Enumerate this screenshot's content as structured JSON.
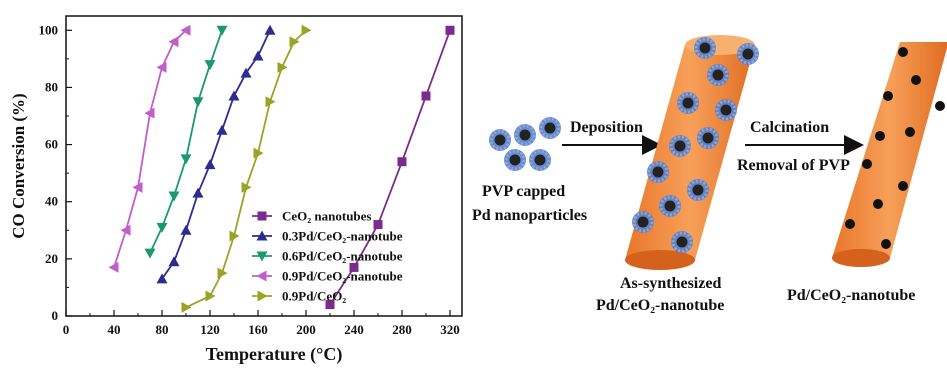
{
  "chart_data": {
    "type": "line",
    "xlabel": "Temperature (°C)",
    "ylabel": "CO Conversion (%)",
    "xlim": [
      0,
      330
    ],
    "ylim": [
      0,
      105
    ],
    "xticks": [
      "0",
      "40",
      "80",
      "120",
      "160",
      "200",
      "240",
      "280",
      "320"
    ],
    "yticks": [
      "0",
      "20",
      "40",
      "60",
      "80",
      "100"
    ],
    "legend_position": "bottom-right",
    "series": [
      {
        "name": "CeO₂ nanotubes",
        "color": "#7b2a8e",
        "marker": "square",
        "x": [
          220,
          240,
          260,
          280,
          300,
          320
        ],
        "y": [
          4,
          17,
          32,
          54,
          77,
          100
        ]
      },
      {
        "name": "0.3Pd/CeO₂-nanotube",
        "color": "#2b2c8f",
        "marker": "triangle-up",
        "x": [
          80,
          90,
          100,
          110,
          120,
          130,
          140,
          150,
          160,
          170
        ],
        "y": [
          13,
          19,
          30,
          43,
          53,
          65,
          77,
          85,
          91,
          100
        ]
      },
      {
        "name": "0.6Pd/CeO₂-nanotube",
        "color": "#1a9a6c",
        "marker": "triangle-down",
        "x": [
          70,
          80,
          90,
          100,
          110,
          120,
          130
        ],
        "y": [
          22,
          31,
          42,
          55,
          75,
          88,
          100
        ]
      },
      {
        "name": "0.9Pd/CeO₂-nanotube",
        "color": "#c25dc9",
        "marker": "triangle-left",
        "x": [
          40,
          50,
          60,
          70,
          80,
          90,
          100
        ],
        "y": [
          17,
          30,
          45,
          71,
          87,
          96,
          100
        ]
      },
      {
        "name": "0.9Pd/CeO₂",
        "color": "#9aa326",
        "marker": "triangle-right",
        "x": [
          100,
          120,
          130,
          140,
          150,
          160,
          170,
          180,
          190,
          200
        ],
        "y": [
          3,
          7,
          15,
          28,
          45,
          57,
          75,
          87,
          96,
          100
        ]
      }
    ]
  },
  "scheme": {
    "step1_label": "Deposition",
    "step2_label": "Calcination",
    "step2_sublabel": "Removal of PVP",
    "precursor_label_line1": "PVP  capped",
    "precursor_label_line2": "Pd nanoparticles",
    "intermediate_label_line1": "As-synthesized",
    "intermediate_label_line2": "Pd/CeO₂-nanotube",
    "product_label": "Pd/CeO₂-nanotube",
    "nanotube_color": "#f08a3a",
    "nanoparticle_color": "#3a5ca8"
  }
}
